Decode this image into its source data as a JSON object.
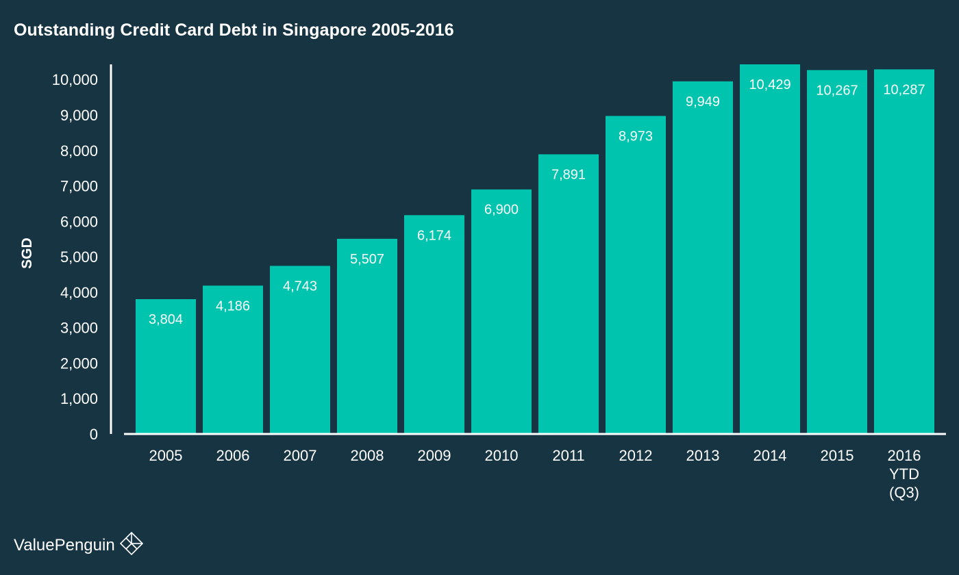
{
  "brand": {
    "name": "ValuePenguin",
    "logo_icon": "penguin-diamond-logo-icon"
  },
  "colors": {
    "background": "#173442",
    "bar": "#00c4ad",
    "text": "#ffffff",
    "axis": "#ffffff"
  },
  "chart_data": {
    "type": "bar",
    "title": "Outstanding Credit Card Debt in Singapore 2005-2016",
    "xlabel": "",
    "ylabel": "SGD",
    "ylim": [
      0,
      10429
    ],
    "yticks": [
      0,
      1000,
      2000,
      3000,
      4000,
      5000,
      6000,
      7000,
      8000,
      9000,
      10000
    ],
    "ytick_labels": [
      "0",
      "1,000",
      "2,000",
      "3,000",
      "4,000",
      "5,000",
      "6,000",
      "7,000",
      "8,000",
      "9,000",
      "10,000"
    ],
    "grid": false,
    "legend": "none",
    "categories": [
      [
        "2005"
      ],
      [
        "2006"
      ],
      [
        "2007"
      ],
      [
        "2008"
      ],
      [
        "2009"
      ],
      [
        "2010"
      ],
      [
        "2011"
      ],
      [
        "2012"
      ],
      [
        "2013"
      ],
      [
        "2014"
      ],
      [
        "2015"
      ],
      [
        "2016",
        "YTD",
        "(Q3)"
      ]
    ],
    "values": [
      3804,
      4186,
      4743,
      5507,
      6174,
      6900,
      7891,
      8973,
      9949,
      10429,
      10267,
      10287
    ],
    "value_labels": [
      "3,804",
      "4,186",
      "4,743",
      "5,507",
      "6,174",
      "6,900",
      "7,891",
      "8,973",
      "9,949",
      "10,429",
      "10,267",
      "10,287"
    ]
  }
}
